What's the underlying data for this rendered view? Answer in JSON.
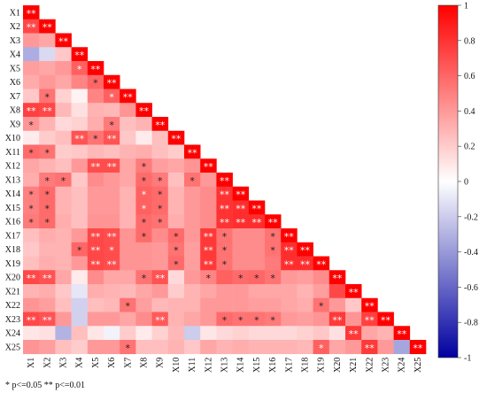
{
  "chart_data": {
    "type": "heatmap",
    "title": "",
    "xlabel": "",
    "ylabel": "",
    "variables": [
      "X1",
      "X2",
      "X3",
      "X4",
      "X5",
      "X6",
      "X7",
      "X8",
      "X9",
      "X10",
      "X11",
      "X12",
      "X13",
      "X14",
      "X15",
      "X16",
      "X17",
      "X18",
      "X19",
      "X20",
      "X21",
      "X22",
      "X23",
      "X24",
      "X25"
    ],
    "lower_triangle": true,
    "values": [
      [
        1
      ],
      [
        0.72,
        1
      ],
      [
        0.4,
        0.35,
        1
      ],
      [
        -0.32,
        -0.15,
        0.22,
        1
      ],
      [
        0.38,
        0.35,
        0.4,
        0.62,
        1
      ],
      [
        0.33,
        0.4,
        0.35,
        0.48,
        0.6,
        1
      ],
      [
        0.22,
        0.55,
        0.18,
        0.05,
        0.48,
        0.62,
        1
      ],
      [
        0.75,
        0.72,
        0.28,
        0.12,
        0.3,
        0.28,
        0.42,
        1
      ],
      [
        0.42,
        0.3,
        0.15,
        0.18,
        0.32,
        0.52,
        0.25,
        0.3,
        1
      ],
      [
        0.08,
        0.2,
        0.25,
        0.68,
        0.55,
        0.68,
        0.22,
        0.08,
        0.25,
        1
      ],
      [
        0.58,
        0.55,
        0.2,
        0.22,
        0.28,
        0.25,
        0.3,
        0.32,
        0.25,
        0.2,
        1
      ],
      [
        0.35,
        0.3,
        0.25,
        0.4,
        0.7,
        0.7,
        0.35,
        0.52,
        0.38,
        0.35,
        0.42,
        1
      ],
      [
        0.32,
        0.52,
        0.55,
        0.22,
        0.45,
        0.4,
        0.35,
        0.58,
        0.52,
        0.25,
        0.55,
        0.4,
        1
      ],
      [
        0.5,
        0.58,
        0.3,
        0.25,
        0.4,
        0.4,
        0.3,
        0.62,
        0.58,
        0.3,
        0.4,
        0.45,
        0.8,
        1
      ],
      [
        0.5,
        0.58,
        0.3,
        0.25,
        0.4,
        0.4,
        0.3,
        0.62,
        0.58,
        0.3,
        0.4,
        0.45,
        0.8,
        0.82,
        1
      ],
      [
        0.52,
        0.58,
        0.32,
        0.25,
        0.42,
        0.42,
        0.3,
        0.58,
        0.55,
        0.32,
        0.4,
        0.45,
        0.8,
        0.82,
        0.82,
        1
      ],
      [
        0.25,
        0.32,
        0.3,
        0.4,
        0.72,
        0.7,
        0.42,
        0.58,
        0.45,
        0.58,
        0.4,
        0.78,
        0.55,
        0.45,
        0.45,
        0.55,
        1
      ],
      [
        0.22,
        0.3,
        0.3,
        0.6,
        0.72,
        0.7,
        0.42,
        0.42,
        0.4,
        0.55,
        0.38,
        0.78,
        0.55,
        0.45,
        0.45,
        0.55,
        0.82,
        1
      ],
      [
        0.25,
        0.32,
        0.3,
        0.4,
        0.72,
        0.7,
        0.42,
        0.42,
        0.4,
        0.58,
        0.38,
        0.78,
        0.55,
        0.45,
        0.45,
        0.52,
        0.82,
        0.82,
        1
      ],
      [
        0.72,
        0.68,
        0.35,
        0.08,
        0.45,
        0.35,
        0.35,
        0.55,
        0.68,
        0.15,
        0.4,
        0.48,
        0.62,
        0.58,
        0.6,
        0.55,
        0.4,
        0.38,
        0.45,
        1
      ],
      [
        0.3,
        0.32,
        0.22,
        -0.1,
        0.32,
        0.3,
        0.28,
        0.35,
        0.4,
        0.2,
        0.3,
        0.35,
        0.4,
        0.4,
        0.35,
        0.35,
        0.35,
        0.3,
        0.38,
        0.72,
        1
      ],
      [
        0.42,
        0.38,
        0.25,
        -0.18,
        0.25,
        0.28,
        0.55,
        0.38,
        0.28,
        0.3,
        0.3,
        0.4,
        0.4,
        0.4,
        0.38,
        0.38,
        0.35,
        0.32,
        0.55,
        0.4,
        0.22,
        1
      ],
      [
        0.72,
        0.68,
        0.4,
        -0.18,
        0.4,
        0.4,
        0.35,
        0.45,
        0.65,
        0.3,
        0.35,
        0.4,
        0.58,
        0.55,
        0.55,
        0.52,
        0.4,
        0.38,
        0.42,
        0.78,
        0.42,
        0.75,
        1
      ],
      [
        0.1,
        0.12,
        -0.3,
        0.25,
        0.1,
        -0.05,
        0.2,
        0.08,
        0.18,
        0.28,
        -0.2,
        0.1,
        0.15,
        0.18,
        0.15,
        0.15,
        0.15,
        0.18,
        0.22,
        0.12,
        0.78,
        0.35,
        0.3,
        1
      ],
      [
        0.42,
        0.38,
        0.25,
        0.2,
        0.4,
        0.4,
        0.55,
        0.25,
        0.25,
        0.3,
        0.22,
        0.35,
        0.3,
        0.32,
        0.3,
        0.3,
        0.3,
        0.28,
        0.62,
        0.35,
        0.4,
        0.78,
        0.4,
        -0.35,
        1
      ]
    ],
    "significance": [
      [
        "**"
      ],
      [
        "**",
        "**"
      ],
      [
        "",
        "",
        "**"
      ],
      [
        "",
        "",
        "",
        "**"
      ],
      [
        "",
        "",
        "",
        "*",
        "**"
      ],
      [
        "",
        "",
        "",
        "",
        "*",
        "**"
      ],
      [
        "",
        "*",
        "",
        "",
        "",
        "*",
        "**"
      ],
      [
        "**",
        "**",
        "",
        "",
        "",
        "",
        "",
        "**"
      ],
      [
        "*",
        "",
        "",
        "",
        "",
        "*",
        "",
        "",
        "**"
      ],
      [
        "",
        "",
        "",
        "**",
        "*",
        "**",
        "",
        "",
        "",
        "**"
      ],
      [
        "*",
        "*",
        "",
        "",
        "",
        "",
        "",
        "",
        "",
        "",
        "**"
      ],
      [
        "",
        "",
        "",
        "",
        "**",
        "**",
        "",
        "*",
        "",
        "",
        "",
        "**"
      ],
      [
        "",
        "*",
        "*",
        "",
        "",
        "",
        "",
        "*",
        "*",
        "",
        "*",
        "",
        "**"
      ],
      [
        "*",
        "*",
        "",
        "",
        "",
        "",
        "",
        "*",
        "*",
        "",
        "",
        "",
        "**",
        "**"
      ],
      [
        "*",
        "*",
        "",
        "",
        "",
        "",
        "",
        "*",
        "*",
        "",
        "",
        "",
        "**",
        "**",
        "**"
      ],
      [
        "*",
        "*",
        "",
        "",
        "",
        "",
        "",
        "*",
        "*",
        "",
        "",
        "",
        "**",
        "**",
        "**",
        "**"
      ],
      [
        "",
        "",
        "",
        "",
        "**",
        "**",
        "",
        "*",
        "",
        "*",
        "",
        "**",
        "*",
        "",
        "",
        "*",
        "**"
      ],
      [
        "",
        "",
        "",
        "*",
        "**",
        "*",
        "",
        "",
        "",
        "*",
        "",
        "**",
        "*",
        "",
        "",
        "*",
        "**",
        "**"
      ],
      [
        "",
        "",
        "",
        "",
        "**",
        "**",
        "",
        "",
        "",
        "*",
        "",
        "**",
        "*",
        "",
        "",
        "",
        "**",
        "**",
        "**"
      ],
      [
        "**",
        "**",
        "",
        "",
        "",
        "",
        "",
        "*",
        "**",
        "",
        "",
        "*",
        "",
        "*",
        "*",
        "*",
        "",
        "",
        "",
        "**"
      ],
      [
        "",
        "",
        "",
        "",
        "",
        "",
        "",
        "",
        "",
        "",
        "",
        "",
        "",
        "",
        "",
        "",
        "",
        "",
        "",
        "",
        "**"
      ],
      [
        "",
        "",
        "",
        "",
        "",
        "",
        "*",
        "",
        "",
        "",
        "",
        "",
        "",
        "",
        "",
        "",
        "",
        "",
        "*",
        "",
        "",
        "**"
      ],
      [
        "**",
        "**",
        "",
        "",
        "",
        "",
        "",
        "",
        "**",
        "",
        "",
        "",
        "*",
        "*",
        "*",
        "*",
        "",
        "",
        "",
        "**",
        "",
        "**",
        "**"
      ],
      [
        "",
        "",
        "",
        "",
        "",
        "",
        "",
        "",
        "",
        "",
        "",
        "",
        "",
        "",
        "",
        "",
        "",
        "",
        "",
        "",
        "**",
        "",
        "",
        "**"
      ],
      [
        "",
        "",
        "",
        "",
        "",
        "",
        "*",
        "",
        "",
        "",
        "",
        "",
        "",
        "",
        "",
        "",
        "",
        "",
        "*",
        "",
        "",
        "**",
        "",
        "",
        "**"
      ]
    ],
    "color_scale": {
      "min": -1,
      "max": 1,
      "colors": [
        "#0000a0",
        "#ffffff",
        "#ff0000"
      ],
      "ticks": [
        "1",
        "0.8",
        "0.6",
        "0.4",
        "0.2",
        "0",
        "-0.2",
        "-0.4",
        "-0.6",
        "-0.8",
        "-1"
      ]
    },
    "legend": "right",
    "grid": false
  },
  "footnote": "* p<=0.05  ** p<=0.01"
}
